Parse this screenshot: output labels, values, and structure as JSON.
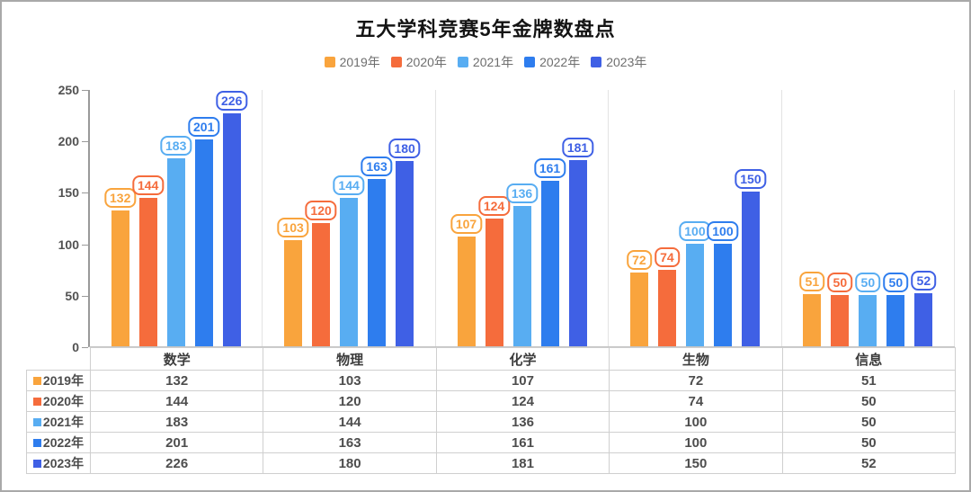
{
  "title": "五大学科竞赛5年金牌数盘点",
  "chart_data": {
    "type": "bar",
    "title": "五大学科竞赛5年金牌数盘点",
    "categories": [
      "数学",
      "物理",
      "化学",
      "生物",
      "信息"
    ],
    "series": [
      {
        "name": "2019年",
        "color": "#F9A43D",
        "values": [
          132,
          103,
          107,
          72,
          51
        ]
      },
      {
        "name": "2020年",
        "color": "#F56C3C",
        "values": [
          144,
          120,
          124,
          74,
          50
        ]
      },
      {
        "name": "2021年",
        "color": "#58ADF2",
        "values": [
          183,
          144,
          136,
          100,
          50
        ]
      },
      {
        "name": "2022年",
        "color": "#2E7DEE",
        "values": [
          201,
          163,
          161,
          100,
          50
        ]
      },
      {
        "name": "2023年",
        "color": "#3F60E5",
        "values": [
          226,
          180,
          181,
          150,
          52
        ]
      }
    ],
    "xlabel": "",
    "ylabel": "",
    "ylim": [
      0,
      250
    ],
    "yticks": [
      0,
      50,
      100,
      150,
      200,
      250
    ],
    "legend_position": "top",
    "grid": "off",
    "data_labels": "boxed above bars",
    "table_below": true
  },
  "colors": {
    "axis_line": "#9a9a9a",
    "panel_separator": "#e3e3e3",
    "table_border": "#cfcfcf",
    "legend_text": "#6e6e6e",
    "title_text": "#141414"
  }
}
